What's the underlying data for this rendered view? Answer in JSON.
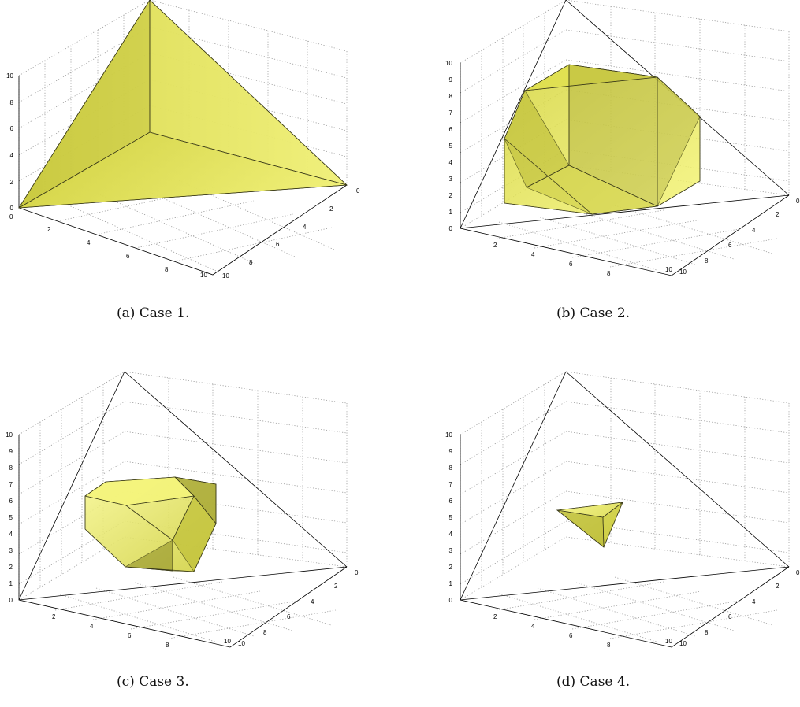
{
  "figures": [
    {
      "caption": "(a)  Case 1.",
      "z_ticks": [
        "0",
        "2",
        "4",
        "6",
        "8",
        "10"
      ],
      "x_ticks": [
        "0",
        "2",
        "4",
        "6",
        "8",
        "10"
      ],
      "y_ticks": [
        "0",
        "2",
        "4",
        "6",
        "8",
        "10"
      ]
    },
    {
      "caption": "(b)  Case 2.",
      "z_ticks": [
        "0",
        "1",
        "2",
        "3",
        "4",
        "5",
        "6",
        "7",
        "8",
        "9",
        "10"
      ],
      "x_ticks": [
        "2",
        "4",
        "6",
        "8",
        "10"
      ],
      "y_ticks": [
        "0",
        "2",
        "4",
        "6",
        "8",
        "10"
      ]
    },
    {
      "caption": "(c)  Case 3.",
      "z_ticks": [
        "0",
        "1",
        "2",
        "3",
        "4",
        "5",
        "6",
        "7",
        "8",
        "9",
        "10"
      ],
      "x_ticks": [
        "2",
        "4",
        "6",
        "8",
        "10"
      ],
      "y_ticks": [
        "0",
        "2",
        "4",
        "6",
        "8",
        "10"
      ]
    },
    {
      "caption": "(d)  Case 4.",
      "z_ticks": [
        "0",
        "1",
        "2",
        "3",
        "4",
        "5",
        "6",
        "7",
        "8",
        "9",
        "10"
      ],
      "x_ticks": [
        "2",
        "4",
        "6",
        "8",
        "10"
      ],
      "y_ticks": [
        "0",
        "2",
        "4",
        "6",
        "8",
        "10"
      ]
    }
  ],
  "colors": {
    "face": "#e6e64a",
    "face_light": "#f4f48c",
    "face_dark": "#a8a834"
  }
}
